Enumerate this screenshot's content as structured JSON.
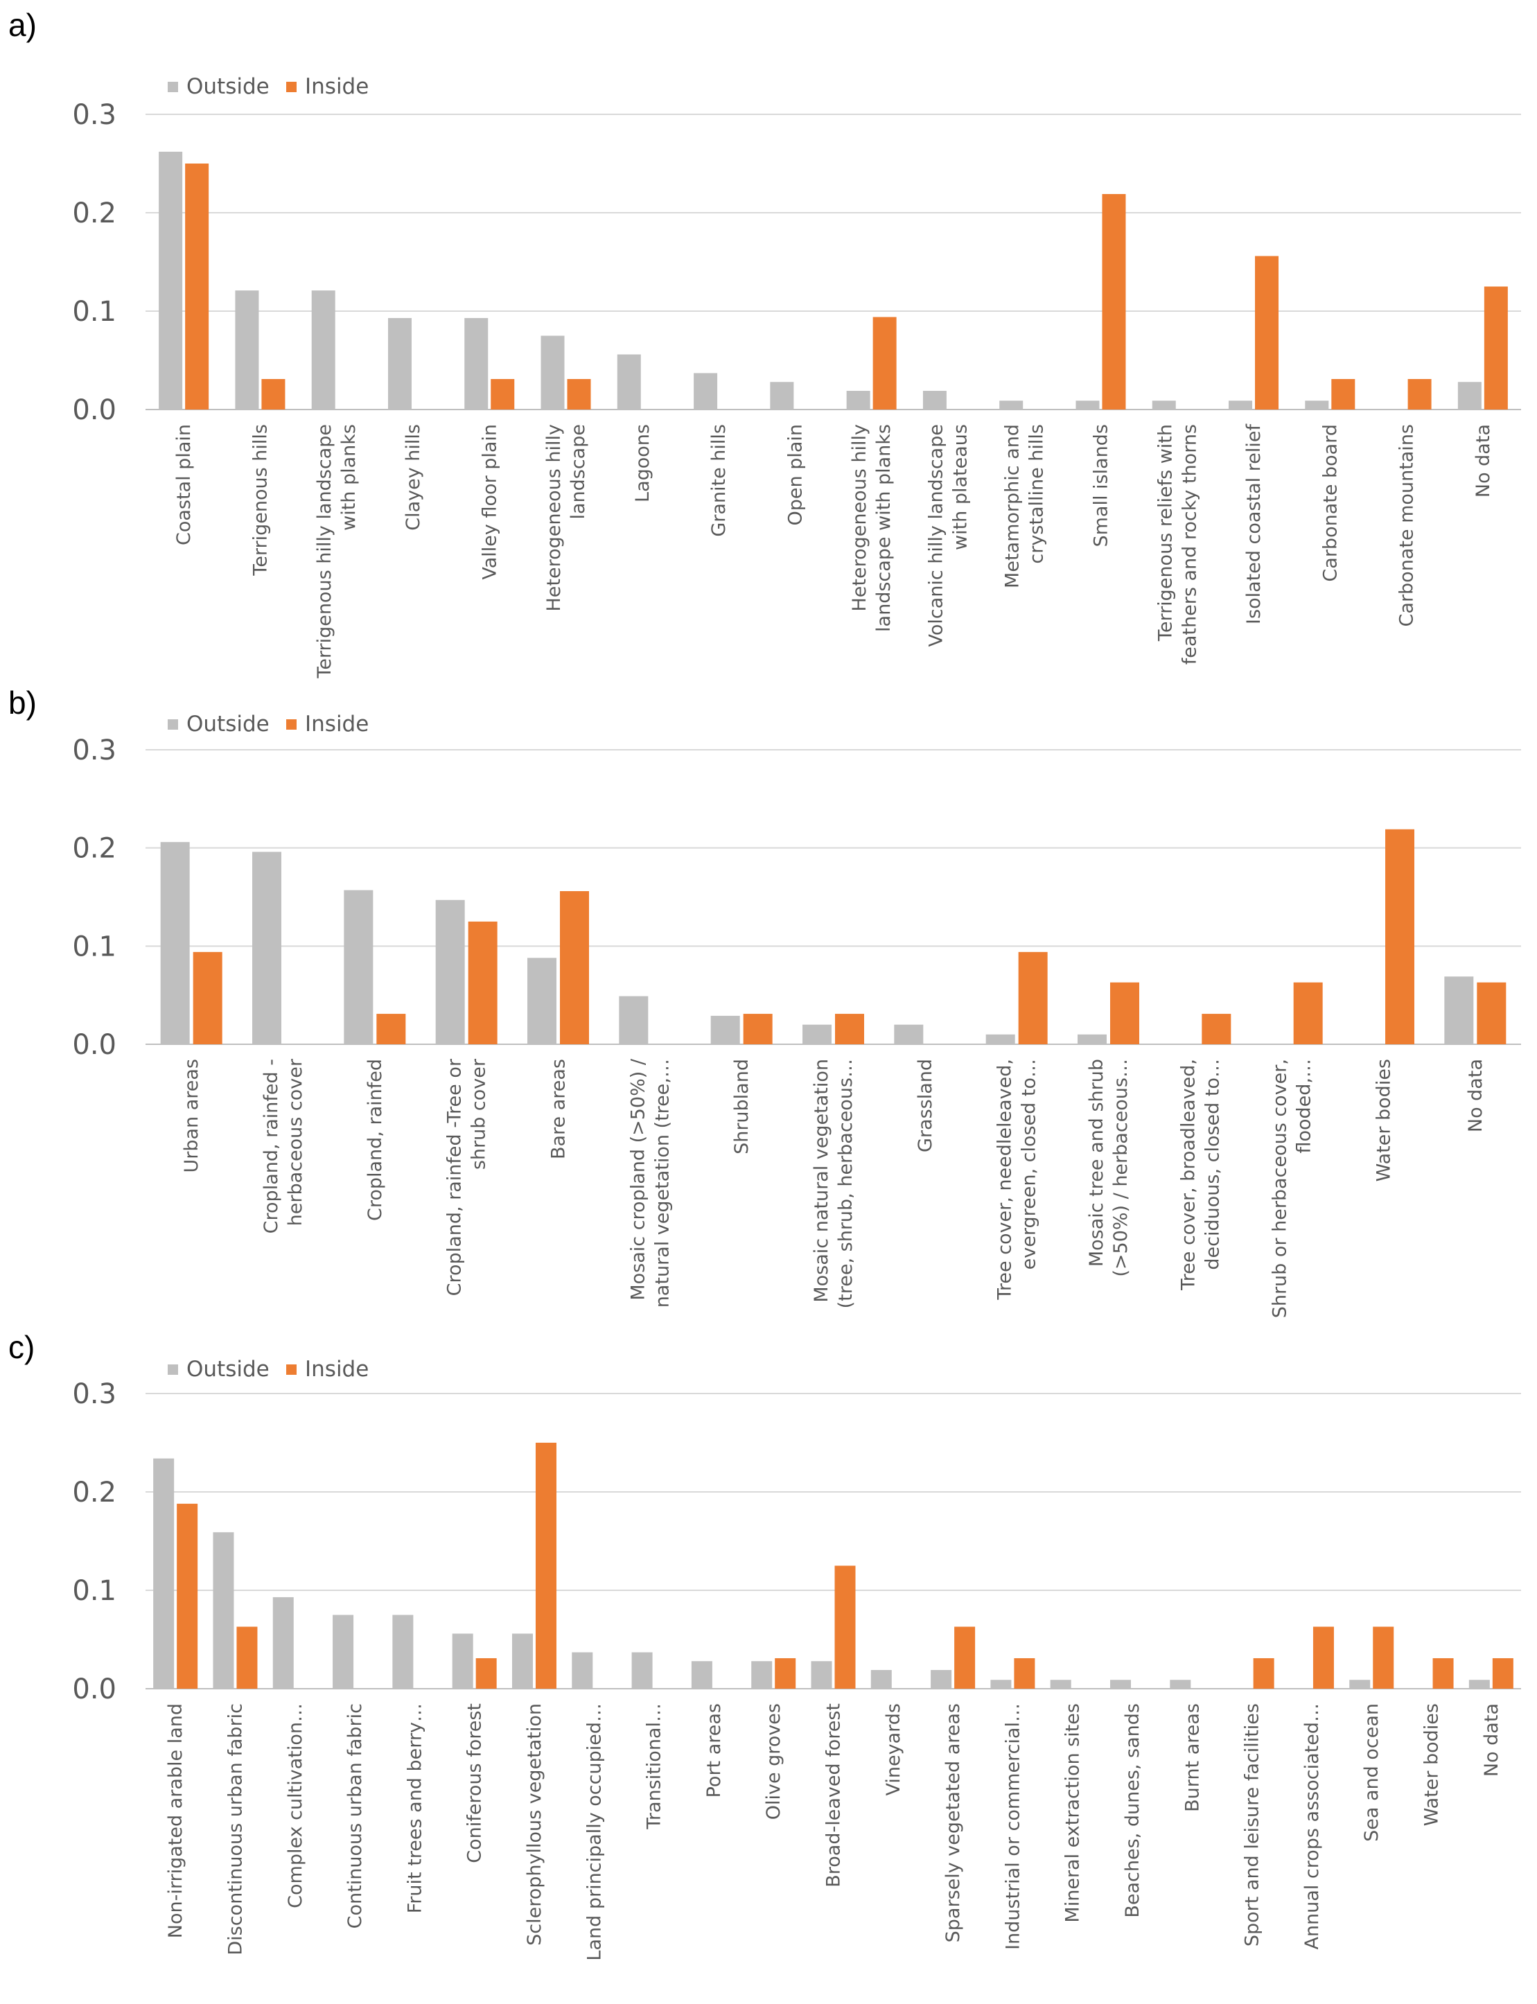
{
  "colors": {
    "outside": "#bfbfbf",
    "inside": "#ed7d31",
    "grid": "#d9d9d9",
    "axis": "#bfbfbf",
    "text": "#595959"
  },
  "legend": {
    "outside": "Outside",
    "inside": "Inside"
  },
  "chart_data": [
    {
      "type": "bar",
      "panel": "a)",
      "ylim": [
        0,
        0.3
      ],
      "yticks": [
        "0.0",
        "0.1",
        "0.2",
        "0.3"
      ],
      "categories": [
        [
          "Coastal plain"
        ],
        [
          "Terrigenous hills"
        ],
        [
          "Terrigenous hilly landscape",
          "with planks"
        ],
        [
          "Clayey hills"
        ],
        [
          "Valley floor plain"
        ],
        [
          "Heterogeneous hilly",
          "landscape"
        ],
        [
          "Lagoons"
        ],
        [
          "Granite hills"
        ],
        [
          "Open plain"
        ],
        [
          "Heterogeneous hilly",
          "landscape with planks"
        ],
        [
          "Volcanic hilly landscape",
          "with plateaus"
        ],
        [
          "Metamorphic and",
          "crystalline hills"
        ],
        [
          "Small islands"
        ],
        [
          "Terrigenous reliefs with",
          "feathers and rocky thorns"
        ],
        [
          "Isolated coastal relief"
        ],
        [
          "Carbonate board"
        ],
        [
          "Carbonate mountains"
        ],
        [
          "No data"
        ]
      ],
      "series": [
        {
          "name": "Outside",
          "values": [
            0.262,
            0.121,
            0.121,
            0.093,
            0.093,
            0.075,
            0.056,
            0.037,
            0.028,
            0.019,
            0.019,
            0.009,
            0.009,
            0.009,
            0.009,
            0.009,
            0,
            0.028
          ]
        },
        {
          "name": "Inside",
          "values": [
            0.25,
            0.031,
            0,
            0,
            0.031,
            0.031,
            0,
            0,
            0,
            0.094,
            0,
            0,
            0.219,
            0,
            0.156,
            0.031,
            0.031,
            0.125
          ]
        }
      ]
    },
    {
      "type": "bar",
      "panel": "b)",
      "ylim": [
        0,
        0.3
      ],
      "yticks": [
        "0.0",
        "0.1",
        "0.2",
        "0.3"
      ],
      "categories": [
        [
          "Urban areas"
        ],
        [
          "Cropland, rainfed -",
          "herbaceous cover"
        ],
        [
          "Cropland, rainfed"
        ],
        [
          "Cropland, rainfed -Tree or",
          "shrub cover"
        ],
        [
          "Bare areas"
        ],
        [
          "Mosaic cropland (>50%) /",
          "natural vegetation (tree,…"
        ],
        [
          "Shrubland"
        ],
        [
          "Mosaic natural vegetation",
          "(tree, shrub, herbaceous…"
        ],
        [
          "Grassland"
        ],
        [
          "Tree cover, needleleaved,",
          "evergreen, closed to…"
        ],
        [
          "Mosaic tree and shrub",
          "(>50%) / herbaceous…"
        ],
        [
          "Tree cover, broadleaved,",
          "deciduous, closed to…"
        ],
        [
          "Shrub or herbaceous cover,",
          "flooded,…"
        ],
        [
          "Water bodies"
        ],
        [
          "No data"
        ]
      ],
      "series": [
        {
          "name": "Outside",
          "values": [
            0.206,
            0.196,
            0.157,
            0.147,
            0.088,
            0.049,
            0.029,
            0.02,
            0.02,
            0.01,
            0.01,
            0,
            0,
            0,
            0.069
          ]
        },
        {
          "name": "Inside",
          "values": [
            0.094,
            0,
            0.031,
            0.125,
            0.156,
            0,
            0.031,
            0.031,
            0,
            0.094,
            0.063,
            0.031,
            0.063,
            0.219,
            0.063
          ]
        }
      ]
    },
    {
      "type": "bar",
      "panel": "c)",
      "ylim": [
        0,
        0.3
      ],
      "yticks": [
        "0.0",
        "0.1",
        "0.2",
        "0.3"
      ],
      "categories": [
        [
          "Non-irrigated arable land"
        ],
        [
          "Discontinuous urban fabric"
        ],
        [
          "Complex cultivation…"
        ],
        [
          "Continuous urban fabric"
        ],
        [
          "Fruit trees and berry…"
        ],
        [
          "Coniferous forest"
        ],
        [
          "Sclerophyllous vegetation"
        ],
        [
          "Land principally occupied…"
        ],
        [
          "Transitional…"
        ],
        [
          "Port areas"
        ],
        [
          "Olive groves"
        ],
        [
          "Broad-leaved forest"
        ],
        [
          "Vineyards"
        ],
        [
          "Sparsely vegetated areas"
        ],
        [
          "Industrial or commercial…"
        ],
        [
          "Mineral extraction sites"
        ],
        [
          "Beaches, dunes, sands"
        ],
        [
          "Burnt areas"
        ],
        [
          "Sport and leisure facilities"
        ],
        [
          "Annual crops associated…"
        ],
        [
          "Sea and ocean"
        ],
        [
          "Water bodies"
        ],
        [
          "No data"
        ]
      ],
      "series": [
        {
          "name": "Outside",
          "values": [
            0.234,
            0.159,
            0.093,
            0.075,
            0.075,
            0.056,
            0.056,
            0.037,
            0.037,
            0.028,
            0.028,
            0.028,
            0.019,
            0.019,
            0.009,
            0.009,
            0.009,
            0.009,
            0,
            0,
            0.009,
            0,
            0.009
          ]
        },
        {
          "name": "Inside",
          "values": [
            0.188,
            0.063,
            0,
            0,
            0,
            0.031,
            0.25,
            0,
            0,
            0,
            0.031,
            0.125,
            0,
            0.063,
            0.031,
            0,
            0,
            0,
            0.031,
            0.063,
            0.063,
            0.031,
            0.031
          ]
        }
      ]
    }
  ]
}
